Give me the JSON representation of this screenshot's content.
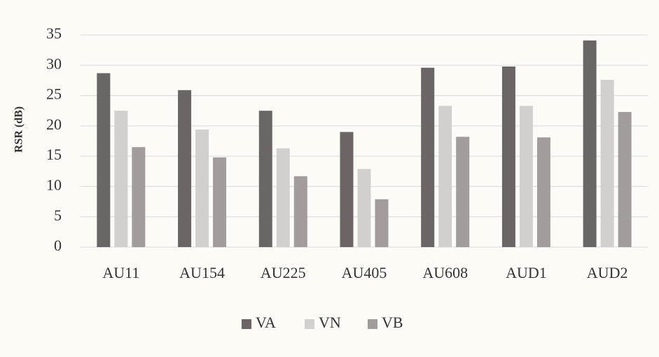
{
  "chart_data": {
    "type": "bar",
    "y_label": "RSR (dB)",
    "categories": [
      "AU11",
      "AU154",
      "AU225",
      "AU405",
      "AU608",
      "AUD1",
      "AUD2"
    ],
    "series": [
      {
        "name": "VA",
        "color": "#6b6665",
        "values": [
          28.7,
          25.9,
          22.5,
          19.0,
          29.6,
          29.8,
          34.1
        ]
      },
      {
        "name": "VN",
        "color": "#d2cfcd",
        "values": [
          22.5,
          19.4,
          16.3,
          12.9,
          23.3,
          23.3,
          27.6
        ]
      },
      {
        "name": "VB",
        "color": "#a29c9b",
        "values": [
          16.5,
          14.8,
          11.7,
          7.9,
          18.2,
          18.1,
          22.3
        ]
      }
    ],
    "ylim": [
      0,
      35
    ],
    "yticks": [
      0,
      5,
      10,
      15,
      20,
      25,
      30,
      35
    ],
    "grid": true,
    "legend": "bottom"
  }
}
